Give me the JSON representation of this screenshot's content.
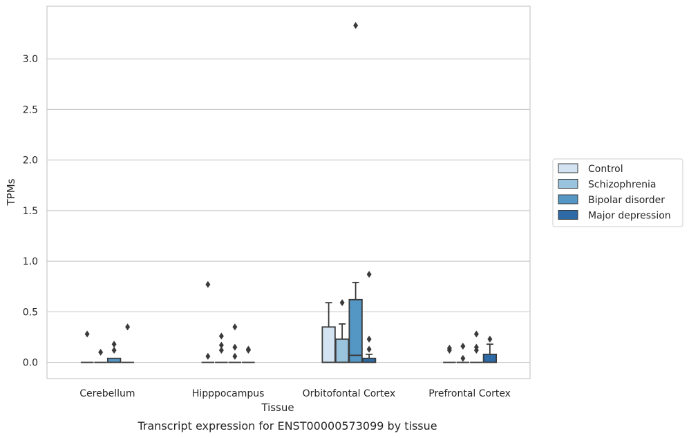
{
  "chart_data": {
    "type": "box",
    "caption": "Transcript expression for ENST00000573099 by tissue",
    "xlabel": "Tissue",
    "ylabel": "TPMs",
    "ylim": [
      -0.16,
      3.52
    ],
    "yticks": [
      "0.0",
      "0.5",
      "1.0",
      "1.5",
      "2.0",
      "2.5",
      "3.0"
    ],
    "grid": "horizontal",
    "legend_position": "right",
    "categories": [
      "Cerebellum",
      "Hipppocampus",
      "Orbitofontal Cortex",
      "Prefrontal Cortex"
    ],
    "series": [
      {
        "name": "Control",
        "color": "#d3e3f1",
        "boxes": [
          {
            "q1": 0,
            "median": 0,
            "q3": 0,
            "whisker_low": 0,
            "whisker_high": 0,
            "outliers": [
              0.28
            ]
          },
          {
            "q1": 0,
            "median": 0,
            "q3": 0,
            "whisker_low": 0,
            "whisker_high": 0,
            "outliers": [
              0.77,
              0.06
            ]
          },
          {
            "q1": 0,
            "median": 0,
            "q3": 0.35,
            "whisker_low": 0,
            "whisker_high": 0.59,
            "outliers": []
          },
          {
            "q1": 0,
            "median": 0,
            "q3": 0,
            "whisker_low": 0,
            "whisker_high": 0,
            "outliers": [
              0.14,
              0.12
            ]
          }
        ]
      },
      {
        "name": "Schizophrenia",
        "color": "#9ac3dd",
        "boxes": [
          {
            "q1": 0,
            "median": 0,
            "q3": 0,
            "whisker_low": 0,
            "whisker_high": 0,
            "outliers": [
              0.1
            ]
          },
          {
            "q1": 0,
            "median": 0,
            "q3": 0,
            "whisker_low": 0,
            "whisker_high": 0,
            "outliers": [
              0.26,
              0.17,
              0.12
            ]
          },
          {
            "q1": 0,
            "median": 0,
            "q3": 0.23,
            "whisker_low": 0,
            "whisker_high": 0.38,
            "outliers": [
              0.59
            ]
          },
          {
            "q1": 0,
            "median": 0,
            "q3": 0,
            "whisker_low": 0,
            "whisker_high": 0,
            "outliers": [
              0.16,
              0.04
            ]
          }
        ]
      },
      {
        "name": "Bipolar disorder",
        "color": "#5597c4",
        "boxes": [
          {
            "q1": 0,
            "median": 0,
            "q3": 0.04,
            "whisker_low": 0,
            "whisker_high": 0.04,
            "outliers": [
              0.18,
              0.12
            ]
          },
          {
            "q1": 0,
            "median": 0,
            "q3": 0,
            "whisker_low": 0,
            "whisker_high": 0,
            "outliers": [
              0.35,
              0.15,
              0.06
            ]
          },
          {
            "q1": 0,
            "median": 0.07,
            "q3": 0.62,
            "whisker_low": 0,
            "whisker_high": 0.79,
            "outliers": [
              3.33
            ]
          },
          {
            "q1": 0,
            "median": 0,
            "q3": 0,
            "whisker_low": 0,
            "whisker_high": 0,
            "outliers": [
              0.28,
              0.15,
              0.12
            ]
          }
        ]
      },
      {
        "name": "Major depression",
        "color": "#2d6aa6",
        "boxes": [
          {
            "q1": 0,
            "median": 0,
            "q3": 0,
            "whisker_low": 0,
            "whisker_high": 0,
            "outliers": [
              0.35
            ]
          },
          {
            "q1": 0,
            "median": 0,
            "q3": 0,
            "whisker_low": 0,
            "whisker_high": 0,
            "outliers": [
              0.13,
              0.12
            ]
          },
          {
            "q1": 0,
            "median": 0,
            "q3": 0.04,
            "whisker_low": 0,
            "whisker_high": 0.08,
            "outliers": [
              0.87,
              0.23,
              0.13
            ]
          },
          {
            "q1": 0,
            "median": 0,
            "q3": 0.08,
            "whisker_low": 0,
            "whisker_high": 0.18,
            "outliers": [
              0.23
            ]
          }
        ]
      }
    ]
  }
}
